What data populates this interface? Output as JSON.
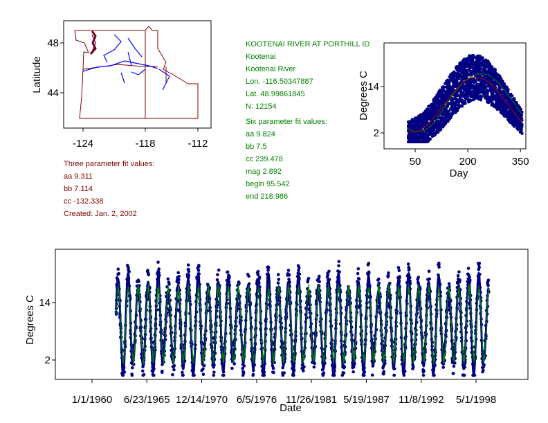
{
  "station": {
    "title": "KOOTENAI RIVER AT PORTHILL ID",
    "name": "Kootenai",
    "river": "Kootenai River",
    "lon": "Lon. -116.50347887",
    "lat": "Lat. 48.99861845",
    "n": "N: 12154"
  },
  "three_param": {
    "heading": "Three parameter fit values:",
    "aa": "aa 9.311",
    "bb": "bb 7.114",
    "cc": "cc -132.338",
    "created": "Created:   Jan. 2, 2002"
  },
  "six_param": {
    "heading": "Six parameter fit values:",
    "aa": "aa 9.824",
    "bb": "bb 7.5",
    "cc": "cc 239.478",
    "mag": "mag 2.892",
    "begin": "begin 95.542",
    "end": "end 218.986"
  },
  "colors": {
    "points": "#000080",
    "fit3": "#c00000",
    "fit6": "#008000",
    "rivers": "#0000ff",
    "borders": "#800000"
  },
  "chart_data": [
    {
      "type": "map",
      "ylabel": "Latitude",
      "xticks": [
        "-124",
        "-118",
        "-112"
      ],
      "yticks": [
        "48",
        "44"
      ]
    },
    {
      "type": "scatter",
      "xlabel": "Day",
      "ylabel": "Degrees C",
      "xticks": [
        "50",
        "200",
        "350"
      ],
      "yticks": [
        "14",
        "2"
      ],
      "xlim": [
        0,
        365
      ],
      "ylim": [
        -2,
        25
      ],
      "point_range": {
        "day_start": 30,
        "day_end": 355
      },
      "fit3": {
        "aa": 9.311,
        "bb": 7.114,
        "cc": -132.338
      },
      "fit6": {
        "aa": 9.824,
        "bb": 7.5,
        "cc": 239.478,
        "mag": 2.892,
        "begin": 95.542,
        "end": 218.986
      }
    },
    {
      "type": "line",
      "xlabel": "Date",
      "ylabel": "Degrees C",
      "xticks": [
        "1/1/1960",
        "6/23/1965",
        "12/14/1970",
        "6/5/1976",
        "11/26/1981",
        "5/19/1987",
        "11/8/1992",
        "5/1/1998"
      ],
      "yticks": [
        "14",
        "2"
      ],
      "xlim_years": [
        1956.3,
        2009.4
      ],
      "ylim": [
        -2,
        25
      ],
      "data_range_years": [
        1962.4,
        1999.6
      ]
    }
  ]
}
